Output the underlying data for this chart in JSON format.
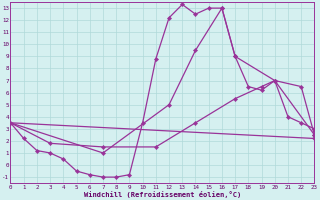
{
  "bg_color": "#d5f0f0",
  "grid_color": "#b0dada",
  "line_color": "#993399",
  "xlabel": "Windchill (Refroidissement éolien,°C)",
  "xlim": [
    0,
    23
  ],
  "ylim": [
    -1.5,
    13.5
  ],
  "xticks": [
    0,
    1,
    2,
    3,
    4,
    5,
    6,
    7,
    8,
    9,
    10,
    11,
    12,
    13,
    14,
    15,
    16,
    17,
    18,
    19,
    20,
    21,
    22,
    23
  ],
  "yticks": [
    -1,
    0,
    1,
    2,
    3,
    4,
    5,
    6,
    7,
    8,
    9,
    10,
    11,
    12,
    13
  ],
  "curve_x": [
    0,
    1,
    2,
    3,
    4,
    5,
    6,
    7,
    8,
    9,
    10,
    11,
    12,
    13,
    14,
    15,
    16,
    17,
    18,
    19,
    20,
    21,
    22,
    23
  ],
  "curve_y": [
    3.5,
    2.2,
    1.2,
    1.0,
    0.5,
    -0.5,
    -0.8,
    -1.0,
    -1.0,
    -0.8,
    3.5,
    8.8,
    12.2,
    13.3,
    12.5,
    13.0,
    13.0,
    9.0,
    6.5,
    6.2,
    7.0,
    4.0,
    3.5,
    3.0
  ],
  "line1_x": [
    0,
    7,
    12,
    14,
    16,
    17,
    20,
    22,
    23
  ],
  "line1_y": [
    3.5,
    1.0,
    5.0,
    9.5,
    13.0,
    9.0,
    7.0,
    6.5,
    2.5
  ],
  "line2_x": [
    0,
    3,
    7,
    11,
    14,
    17,
    19,
    20,
    23
  ],
  "line2_y": [
    3.5,
    1.8,
    1.5,
    1.5,
    3.5,
    5.5,
    6.5,
    7.0,
    2.5
  ],
  "line3_x": [
    0,
    23
  ],
  "line3_y": [
    3.5,
    2.2
  ]
}
